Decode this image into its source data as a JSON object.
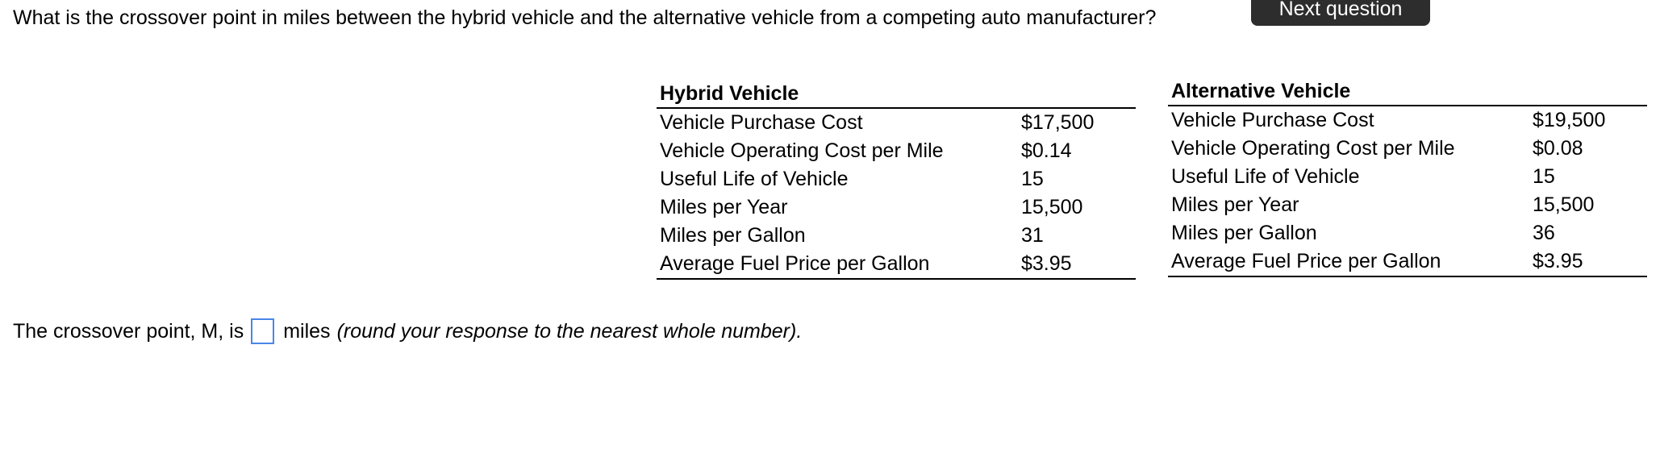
{
  "question": "What is the crossover point in miles between the hybrid vehicle and the alternative vehicle from a competing auto manufacturer?",
  "next_button": "Next question",
  "hybrid": {
    "title": "Hybrid Vehicle",
    "rows": [
      {
        "label": "Vehicle Purchase Cost",
        "value": "$17,500"
      },
      {
        "label": "Vehicle Operating Cost per Mile",
        "value": "$0.14"
      },
      {
        "label": "Useful Life of Vehicle",
        "value": "15"
      },
      {
        "label": "Miles per Year",
        "value": "15,500"
      },
      {
        "label": "Miles per Gallon",
        "value": "31"
      },
      {
        "label": "Average Fuel Price per Gallon",
        "value": "$3.95"
      }
    ]
  },
  "alternative": {
    "title": "Alternative Vehicle",
    "rows": [
      {
        "label": "Vehicle Purchase Cost",
        "value": "$19,500"
      },
      {
        "label": "Vehicle Operating Cost per Mile",
        "value": "$0.08"
      },
      {
        "label": "Useful Life of Vehicle",
        "value": "15"
      },
      {
        "label": "Miles per Year",
        "value": "15,500"
      },
      {
        "label": "Miles per Gallon",
        "value": "36"
      },
      {
        "label": "Average Fuel Price per Gallon",
        "value": "$3.95"
      }
    ]
  },
  "answer": {
    "prefix": "The crossover point, M, is",
    "unit": "miles",
    "instruction": "(round your response to the nearest whole number).",
    "value": ""
  }
}
